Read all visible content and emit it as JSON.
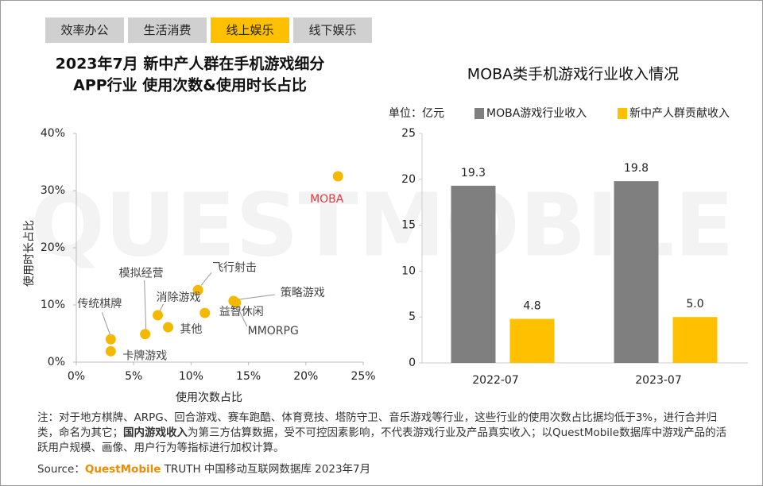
{
  "tabs": {
    "items": [
      "效率办公",
      "生活消费",
      "线上娱乐",
      "线下娱乐"
    ],
    "active": 2
  },
  "watermark": "QUESTMOBILE",
  "chart_data": [
    {
      "type": "scatter",
      "title": [
        "2023年7月 新中产人群在手机游戏细分",
        "APP行业 使用次数&使用时长占比"
      ],
      "x_label": "使用次数占比",
      "y_label": "使用时长占比",
      "color": "#f5b800",
      "point_labels": [
        "MOBA",
        "飞行射击",
        "策略游戏",
        "MMORPG",
        "益智休闲",
        "消除游戏",
        "其他",
        "模拟经营",
        "传统棋牌",
        "卡牌游戏"
      ],
      "point_label_colors": [
        "#e8383d",
        "#444444",
        "#444444",
        "#444444",
        "#444444",
        "#444444",
        "#444444",
        "#444444",
        "#444444",
        "#444444"
      ],
      "x": [
        22.8,
        10.6,
        13.7,
        13.9,
        11.2,
        7.1,
        8.0,
        6.0,
        3.0,
        3.0
      ],
      "values": [
        32.5,
        12.6,
        10.7,
        10.4,
        8.6,
        8.2,
        6.1,
        4.9,
        4.0,
        1.9
      ],
      "xlim": [
        0,
        25
      ],
      "xticks": [
        {
          "value": 0,
          "label": "0%"
        },
        {
          "value": 5,
          "label": "5%"
        },
        {
          "value": 10,
          "label": "10%"
        },
        {
          "value": 15,
          "label": "15%"
        },
        {
          "value": 20,
          "label": "20%"
        },
        {
          "value": 25,
          "label": "25%"
        }
      ],
      "ylim": [
        0,
        40
      ],
      "yticks": [
        {
          "value": 0,
          "label": "0%"
        },
        {
          "value": 10,
          "label": "10%"
        },
        {
          "value": 20,
          "label": "20%"
        },
        {
          "value": 30,
          "label": "30%"
        },
        {
          "value": 40,
          "label": "40%"
        }
      ]
    },
    {
      "type": "bar",
      "title": "MOBA类手机游戏行业收入情况",
      "unit": "单位：亿元",
      "categories": [
        "2022-07",
        "2023-07"
      ],
      "series": [
        {
          "name": "MOBA游戏行业收入",
          "color": "#7f7f7f",
          "values": [
            19.3,
            19.8
          ],
          "value_labels": [
            "19.3",
            "19.8"
          ]
        },
        {
          "name": "新中产人群贡献收入",
          "color": "#ffc000",
          "values": [
            4.8,
            5
          ],
          "value_labels": [
            "4.8",
            "5.0"
          ]
        }
      ],
      "ylim": [
        0,
        25
      ],
      "yticks": [
        0,
        5,
        10,
        15,
        20,
        25
      ]
    }
  ],
  "notes": {
    "note_parts": [
      "注：对于地方棋牌、ARPG、回合游戏、赛车跑酷、体育竞技、塔防守卫、音乐游戏等行业，这些行业的使用次数占比据均低于3%，进行合并归类，命名为其它；",
      "国内游戏收入",
      "为第三方估算数据，受不可控因素影响，不代表游戏行业及产品真实收入；以QuestMobile数据库中游戏产品的活跃用户规模、画像、用户行为等指标进行加权计算。"
    ],
    "source_label": "Source：",
    "source_brand": "QuestMobile",
    "source_text": "TRUTH 中国移动互联网数据库 2023年7月"
  }
}
